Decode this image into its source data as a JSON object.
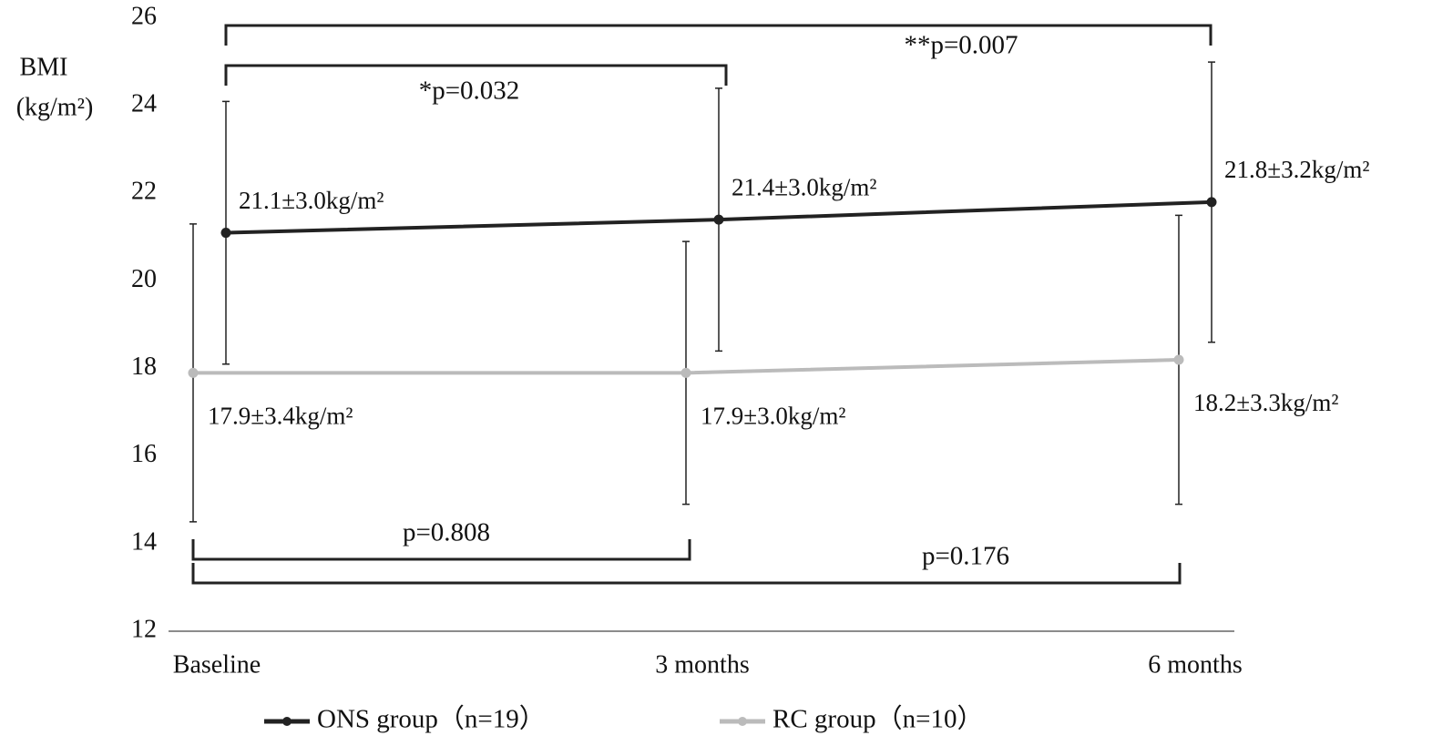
{
  "chart_data": {
    "type": "line",
    "y_label_lines": [
      "BMI",
      "(kg/m²)"
    ],
    "categories": [
      "Baseline",
      "3 months",
      "6 months"
    ],
    "ylim": [
      12,
      26
    ],
    "yticks": [
      12,
      14,
      16,
      18,
      20,
      22,
      24,
      26
    ],
    "grid": false,
    "series": [
      {
        "name": "ONS group（n=19）",
        "color": "#222222",
        "values": [
          21.1,
          21.4,
          21.8
        ],
        "errors": [
          3.0,
          3.0,
          3.2
        ],
        "value_labels": [
          "21.1±3.0kg/m²",
          "21.4±3.0kg/m²",
          "21.8±3.2kg/m²"
        ]
      },
      {
        "name": "RC group（n=10）",
        "color": "#bbbbbb",
        "values": [
          17.9,
          17.9,
          18.2
        ],
        "errors": [
          3.4,
          3.0,
          3.3
        ],
        "value_labels": [
          "17.9±3.4kg/m²",
          "17.9±3.0kg/m²",
          "18.2±3.3kg/m²"
        ]
      }
    ],
    "annotations": [
      "*p=0.032",
      "**p=0.007",
      "p=0.808",
      "p=0.176"
    ],
    "legend": "bottom"
  }
}
